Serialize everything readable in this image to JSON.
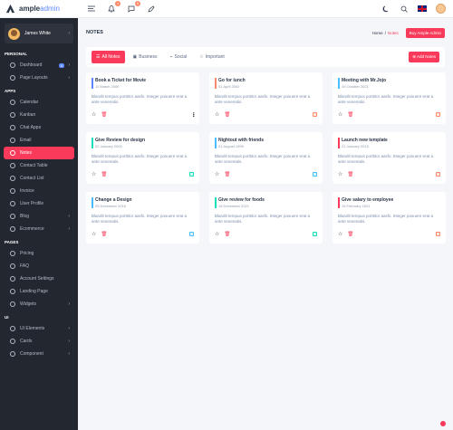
{
  "brand": {
    "name_bold": "ample",
    "name_light": "admin",
    "accent": "#5d87ff"
  },
  "topbar": {
    "icons": [
      "menu-icon",
      "bell-icon",
      "message-icon",
      "pen-icon"
    ],
    "badges": [
      "1",
      "5"
    ],
    "right_icons": [
      "moon-icon",
      "search-icon",
      "flag-icon",
      "avatar"
    ]
  },
  "user": {
    "name": "James White"
  },
  "sidebar": {
    "sections": [
      {
        "title": "PERSONAL",
        "items": [
          {
            "label": "Dashboard",
            "pill": "6",
            "chevron": true
          },
          {
            "label": "Page Layouts",
            "chevron": true
          }
        ]
      },
      {
        "title": "APPS",
        "items": [
          {
            "label": "Calendar"
          },
          {
            "label": "Kanban"
          },
          {
            "label": "Chat Apps"
          },
          {
            "label": "Email"
          },
          {
            "label": "Notes",
            "active": true
          },
          {
            "label": "Contact Table"
          },
          {
            "label": "Contact List"
          },
          {
            "label": "Invoice"
          },
          {
            "label": "User Profile"
          },
          {
            "label": "Blog",
            "chevron": true
          },
          {
            "label": "Ecommerce",
            "chevron": true
          }
        ]
      },
      {
        "title": "PAGES",
        "items": [
          {
            "label": "Pricing"
          },
          {
            "label": "FAQ"
          },
          {
            "label": "Account Settings"
          },
          {
            "label": "Landing Page"
          },
          {
            "label": "Widgets",
            "chevron": true
          }
        ]
      },
      {
        "title": "UI",
        "items": [
          {
            "label": "UI Elements",
            "chevron": true
          },
          {
            "label": "Cards",
            "chevron": true
          },
          {
            "label": "Component",
            "chevron": true
          }
        ]
      }
    ]
  },
  "page": {
    "title": "NOTES",
    "breadcrumb_home": "Home",
    "breadcrumb_sep": "/",
    "breadcrumb_current": "Notes",
    "buy_button": "Buy Ample Admin"
  },
  "toolbar": {
    "tabs": [
      {
        "label": "All Notes",
        "icon": "list-icon",
        "active": true
      },
      {
        "label": "Business",
        "icon": "briefcase-icon"
      },
      {
        "label": "Social",
        "icon": "share-icon"
      },
      {
        "label": "Important",
        "icon": "star-icon"
      }
    ],
    "add_label": "Add Notes"
  },
  "notes": [
    {
      "title": "Book a Ticket for Movie",
      "date": "11 March 2009",
      "body": "Blandit tempus porttitor aasfs. Integer posuere erat a ante venenatis.",
      "color": "#5d87ff",
      "marker": "dots"
    },
    {
      "title": "Go for lunch",
      "date": "01 April 2002",
      "body": "Blandit tempus porttitor aasfs. Integer posuere erat a ante venenatis.",
      "color": "#fa896b",
      "marker": "#fa896b"
    },
    {
      "title": "Meeting with Mr.Jojo",
      "date": "19 October 2021",
      "body": "Blandit tempus porttitor aasfs. Integer posuere erat a ante venenatis.",
      "color": "#49beff",
      "marker": "#fa896b"
    },
    {
      "title": "Give Review for design",
      "date": "02 January 2000",
      "body": "Blandit tempus porttitor aasfs. Integer posuere erat a ante venenatis.",
      "color": "#13deb9",
      "marker": "#13deb9"
    },
    {
      "title": "Nightout with friends",
      "date": "01 August 1999",
      "body": "Blandit tempus porttitor aasfs. Integer posuere erat a ante venenatis.",
      "color": "#49beff",
      "marker": "#49beff"
    },
    {
      "title": "Launch new template",
      "date": "21 January 2015",
      "body": "Blandit tempus porttitor aasfs. Integer posuere erat a ante venenatis.",
      "color": "#fa3a5a",
      "marker": "#fa896b"
    },
    {
      "title": "Change a Design",
      "date": "25 December 2016",
      "body": "Blandit tempus porttitor aasfs. Integer posuere erat a ante venenatis.",
      "color": "#49beff",
      "marker": "#49beff"
    },
    {
      "title": "Give review for foods",
      "date": "18 December 2021",
      "body": "Blandit tempus porttitor aasfs. Integer posuere erat a ante venenatis.",
      "color": "#13deb9",
      "marker": "#13deb9"
    },
    {
      "title": "Give salary to employee",
      "date": "15 February 2021",
      "body": "Blandit tempus porttitor aasfs. Integer posuere erat a ante venenatis.",
      "color": "#fa3a5a",
      "marker": "#fa896b"
    }
  ]
}
